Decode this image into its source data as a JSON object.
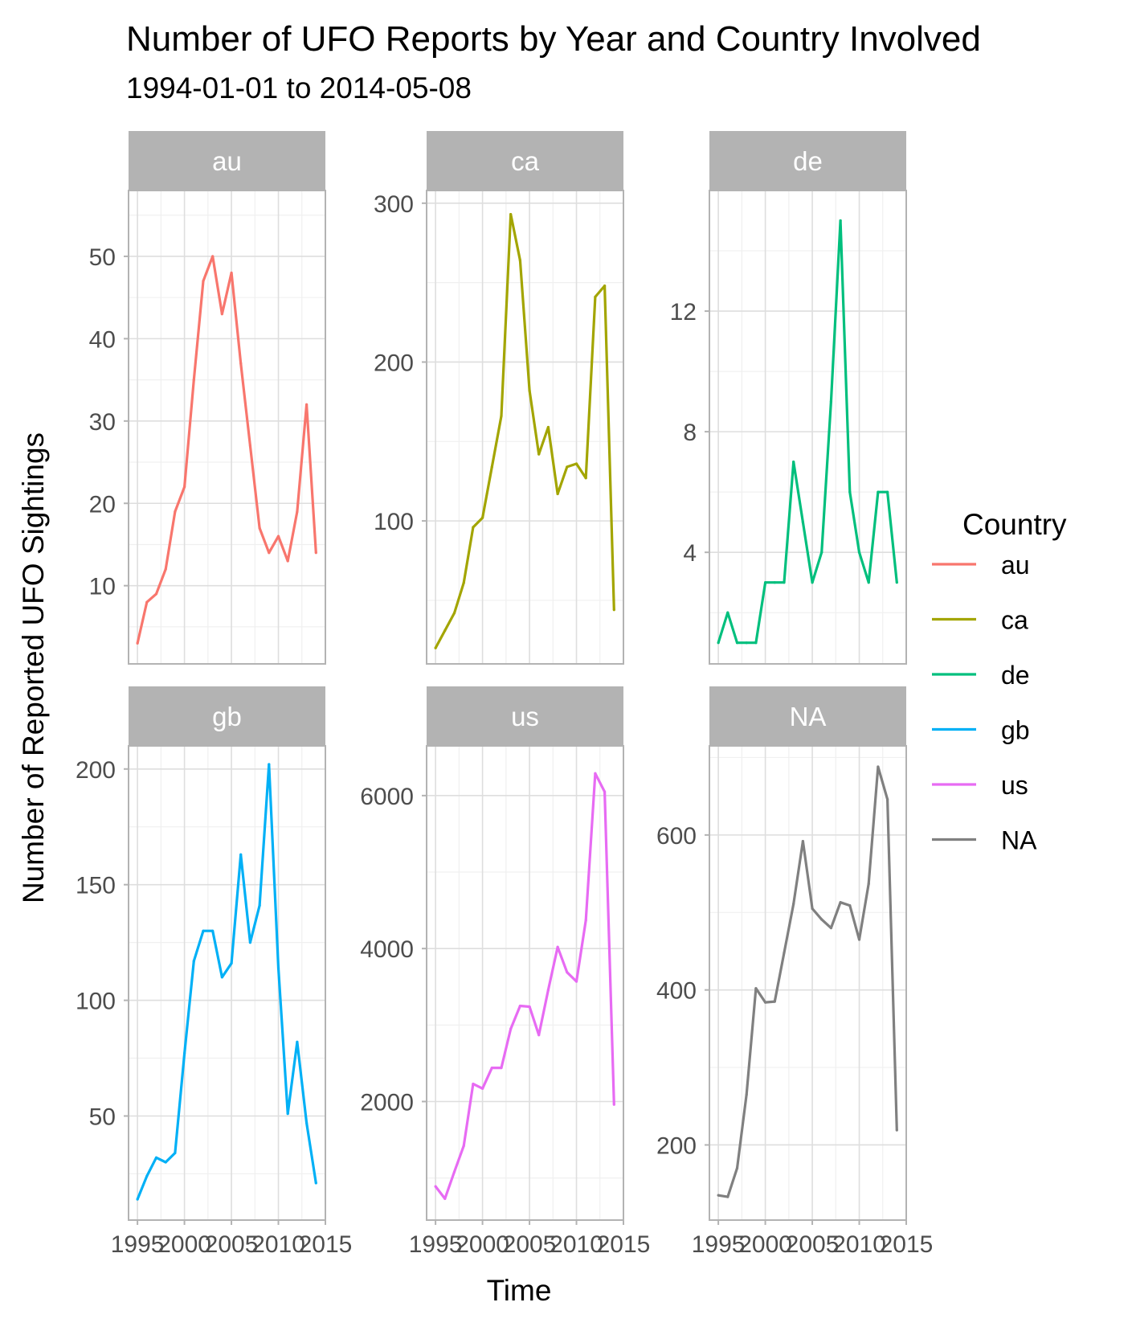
{
  "chart_data": {
    "type": "line",
    "title": "Number of UFO Reports by Year and Country Involved",
    "subtitle": "1994-01-01 to 2014-05-08",
    "xlabel": "Time",
    "ylabel": "Number of Reported UFO Sightings",
    "legend_title": "Country",
    "legend_position": "right",
    "x_ticks": [
      "1995",
      "2000",
      "2005",
      "2010",
      "2015"
    ],
    "grid": true,
    "facets": [
      {
        "name": "au",
        "color": "#F8766D",
        "y_ticks": [
          "10",
          "20",
          "30",
          "40",
          "50"
        ],
        "ylim": [
          0.5,
          58
        ],
        "x": [
          1995,
          1996,
          1997,
          1998,
          1999,
          2000,
          2001,
          2002,
          2003,
          2004,
          2005,
          2006,
          2007,
          2008,
          2009,
          2010,
          2011,
          2012,
          2013,
          2014
        ],
        "values": [
          3,
          8,
          9,
          12,
          19,
          22,
          35,
          47,
          50,
          43,
          48,
          37,
          27,
          17,
          14,
          16,
          13,
          19,
          32,
          14
        ]
      },
      {
        "name": "ca",
        "color": "#A3A500",
        "y_ticks": [
          "100",
          "200",
          "300"
        ],
        "ylim": [
          10,
          308
        ],
        "x": [
          1995,
          1996,
          1997,
          1998,
          1999,
          2000,
          2001,
          2002,
          2003,
          2004,
          2005,
          2006,
          2007,
          2008,
          2009,
          2010,
          2011,
          2012,
          2013,
          2014
        ],
        "values": [
          20,
          31,
          42,
          61,
          96,
          102,
          134,
          166,
          293,
          264,
          182,
          142,
          159,
          117,
          134,
          136,
          127,
          241,
          248,
          44
        ]
      },
      {
        "name": "de",
        "color": "#00BF7D",
        "y_ticks": [
          "4",
          "8",
          "12"
        ],
        "ylim": [
          0.3,
          16
        ],
        "x": [
          1995,
          1996,
          1997,
          1998,
          1999,
          2000,
          2001,
          2002,
          2003,
          2004,
          2005,
          2006,
          2007,
          2008,
          2009,
          2010,
          2011,
          2012,
          2013,
          2014
        ],
        "values": [
          1,
          2,
          1,
          1,
          1,
          3,
          3,
          3,
          7,
          5,
          3,
          4,
          9,
          15,
          6,
          4,
          3,
          6,
          6,
          3
        ]
      },
      {
        "name": "gb",
        "color": "#00B0F6",
        "y_ticks": [
          "50",
          "100",
          "150",
          "200"
        ],
        "ylim": [
          5,
          210
        ],
        "x": [
          1995,
          1996,
          1997,
          1998,
          1999,
          2000,
          2001,
          2002,
          2003,
          2004,
          2005,
          2006,
          2007,
          2008,
          2009,
          2010,
          2011,
          2012,
          2013,
          2014
        ],
        "values": [
          14,
          24,
          32,
          30,
          34,
          77,
          117,
          130,
          130,
          110,
          116,
          163,
          125,
          141,
          202,
          114,
          51,
          82,
          47,
          21
        ]
      },
      {
        "name": "us",
        "color": "#E76BF3",
        "y_ticks": [
          "2000",
          "4000",
          "6000"
        ],
        "ylim": [
          450,
          6650
        ],
        "x": [
          1995,
          1996,
          1997,
          1998,
          1999,
          2000,
          2001,
          2002,
          2003,
          2004,
          2005,
          2006,
          2007,
          2008,
          2009,
          2010,
          2011,
          2012,
          2013,
          2014
        ],
        "values": [
          890,
          730,
          1080,
          1420,
          2230,
          2170,
          2440,
          2440,
          2950,
          3250,
          3240,
          2870,
          3460,
          4020,
          3690,
          3570,
          4370,
          6290,
          6050,
          1960
        ]
      },
      {
        "name": "NA",
        "color": "#808080",
        "y_ticks": [
          "200",
          "400",
          "600"
        ],
        "ylim": [
          103,
          715
        ],
        "x": [
          1995,
          1996,
          1997,
          1998,
          1999,
          2000,
          2001,
          2002,
          2003,
          2004,
          2005,
          2006,
          2007,
          2008,
          2009,
          2010,
          2011,
          2012,
          2013,
          2014
        ],
        "values": [
          135,
          133,
          170,
          265,
          402,
          384,
          385,
          448,
          511,
          592,
          505,
          491,
          480,
          513,
          509,
          465,
          537,
          688,
          646,
          219
        ]
      }
    ]
  }
}
